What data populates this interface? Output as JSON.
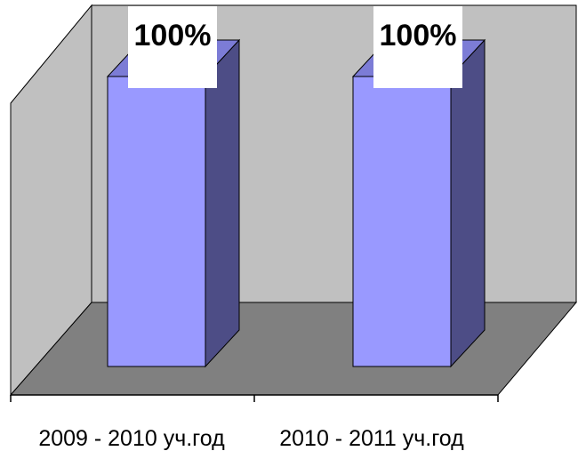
{
  "chart_data": {
    "type": "bar",
    "style": "3d-column",
    "categories": [
      "2009 - 2010 уч.год",
      "2010 - 2011 уч.год"
    ],
    "values": [
      100,
      100
    ],
    "data_labels": [
      "100%",
      "100%"
    ],
    "ylim": [
      0,
      100
    ],
    "grid": false,
    "legend": "none",
    "colors": {
      "bar_front": "#9999ff",
      "bar_side": "#4d4d86",
      "bar_top": "#7c7cd6",
      "walls": "#c0c0c0",
      "floor": "#808080",
      "label_box": "#ffffff",
      "outline": "#000000"
    }
  }
}
